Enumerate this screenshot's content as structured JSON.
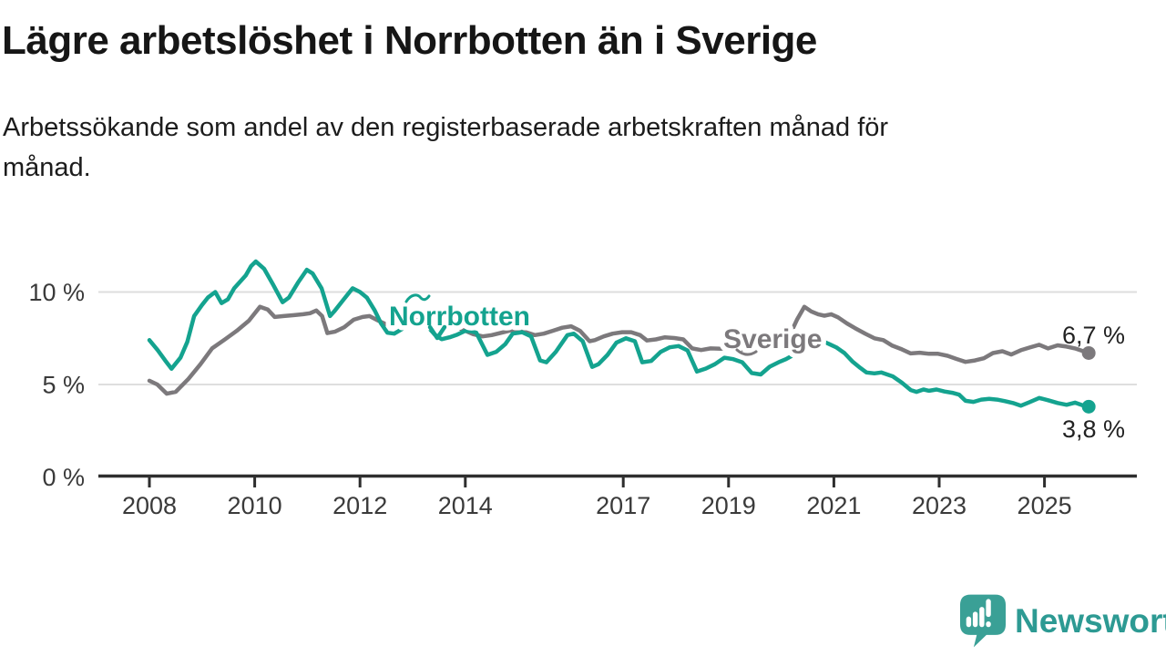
{
  "header": {
    "title": "Lägre arbetslöshet i Norrbotten än i Sverige",
    "subtitle_lines": [
      "Arbetssökande som andel av den registerbaserade arbetskraften månad för",
      "månad."
    ]
  },
  "colors": {
    "norrbotten": "#14a38f",
    "sverige": "#7c797c",
    "axis": "#2e2e2e",
    "grid": "#dedede",
    "tick_text": "#3a3a3a",
    "end_label_text": "#222222",
    "logo_teal": "#3aa096",
    "logo_text_teal": "#2d9a93"
  },
  "chart_data": {
    "type": "line",
    "title": "Lägre arbetslöshet i Norrbotten än i Sverige",
    "xlabel": "",
    "ylabel": "Arbetssökande som andel av den registerbaserade arbetskraften",
    "legend_position": "inline-labels",
    "grid": "horizontal",
    "x_axis": {
      "ticks": [
        2008,
        2010,
        2012,
        2014,
        2017,
        2019,
        2021,
        2023,
        2025
      ],
      "tick_labels": [
        "2008",
        "2010",
        "2012",
        "2014",
        "2017",
        "2019",
        "2021",
        "2023",
        "2025"
      ],
      "xlim": [
        2007.1,
        2026.7
      ]
    },
    "y_axis": {
      "ticks": [
        0,
        5,
        10
      ],
      "tick_labels": [
        "0 %",
        "5 %",
        "10 %"
      ],
      "gridlines": [
        5,
        10
      ],
      "ylim": [
        0,
        12
      ],
      "unit": "%"
    },
    "series": [
      {
        "name": "Sverige",
        "label_text": "Sverige",
        "color": "#7c797c",
        "end_label": "6,7 %",
        "end_value": 6.7,
        "points": [
          [
            2008.0,
            5.2
          ],
          [
            2008.15,
            5.0
          ],
          [
            2008.33,
            4.5
          ],
          [
            2008.5,
            4.6
          ],
          [
            2008.74,
            5.3
          ],
          [
            2008.97,
            6.1
          ],
          [
            2009.19,
            6.95
          ],
          [
            2009.44,
            7.45
          ],
          [
            2009.66,
            7.9
          ],
          [
            2009.89,
            8.45
          ],
          [
            2010.1,
            9.2
          ],
          [
            2010.25,
            9.05
          ],
          [
            2010.38,
            8.65
          ],
          [
            2010.55,
            8.7
          ],
          [
            2010.75,
            8.75
          ],
          [
            2010.92,
            8.8
          ],
          [
            2011.05,
            8.85
          ],
          [
            2011.17,
            9.0
          ],
          [
            2011.28,
            8.7
          ],
          [
            2011.38,
            7.78
          ],
          [
            2011.52,
            7.85
          ],
          [
            2011.7,
            8.1
          ],
          [
            2011.88,
            8.5
          ],
          [
            2012.05,
            8.65
          ],
          [
            2012.18,
            8.7
          ],
          [
            2012.35,
            8.45
          ],
          [
            2012.5,
            8.25
          ],
          [
            2012.65,
            8.2
          ],
          [
            2012.82,
            8.35
          ],
          [
            2013.0,
            8.5
          ],
          [
            2013.2,
            8.5
          ],
          [
            2013.4,
            8.45
          ],
          [
            2013.6,
            8.3
          ],
          [
            2013.8,
            8.15
          ],
          [
            2014.0,
            7.9
          ],
          [
            2014.15,
            7.72
          ],
          [
            2014.33,
            7.6
          ],
          [
            2014.5,
            7.67
          ],
          [
            2014.73,
            7.83
          ],
          [
            2014.97,
            8.0
          ],
          [
            2015.15,
            7.83
          ],
          [
            2015.32,
            7.67
          ],
          [
            2015.49,
            7.75
          ],
          [
            2015.66,
            7.9
          ],
          [
            2015.84,
            8.07
          ],
          [
            2016.01,
            8.15
          ],
          [
            2016.18,
            7.9
          ],
          [
            2016.36,
            7.34
          ],
          [
            2016.46,
            7.4
          ],
          [
            2016.63,
            7.6
          ],
          [
            2016.8,
            7.75
          ],
          [
            2016.98,
            7.83
          ],
          [
            2017.15,
            7.83
          ],
          [
            2017.32,
            7.67
          ],
          [
            2017.45,
            7.38
          ],
          [
            2017.62,
            7.44
          ],
          [
            2017.79,
            7.55
          ],
          [
            2017.97,
            7.51
          ],
          [
            2018.14,
            7.44
          ],
          [
            2018.31,
            6.95
          ],
          [
            2018.48,
            6.86
          ],
          [
            2018.66,
            6.95
          ],
          [
            2018.85,
            6.93
          ],
          [
            2019.05,
            7.0
          ],
          [
            2019.25,
            6.9
          ],
          [
            2019.45,
            6.85
          ],
          [
            2019.65,
            6.95
          ],
          [
            2019.85,
            7.05
          ],
          [
            2020.0,
            7.25
          ],
          [
            2020.15,
            7.6
          ],
          [
            2020.3,
            8.5
          ],
          [
            2020.44,
            9.2
          ],
          [
            2020.57,
            8.95
          ],
          [
            2020.7,
            8.8
          ],
          [
            2020.82,
            8.72
          ],
          [
            2020.95,
            8.8
          ],
          [
            2021.08,
            8.63
          ],
          [
            2021.25,
            8.3
          ],
          [
            2021.4,
            8.05
          ],
          [
            2021.6,
            7.74
          ],
          [
            2021.77,
            7.5
          ],
          [
            2021.94,
            7.4
          ],
          [
            2022.11,
            7.1
          ],
          [
            2022.29,
            6.9
          ],
          [
            2022.46,
            6.68
          ],
          [
            2022.63,
            6.72
          ],
          [
            2022.81,
            6.66
          ],
          [
            2022.98,
            6.66
          ],
          [
            2023.16,
            6.55
          ],
          [
            2023.33,
            6.38
          ],
          [
            2023.5,
            6.22
          ],
          [
            2023.68,
            6.3
          ],
          [
            2023.85,
            6.42
          ],
          [
            2024.02,
            6.7
          ],
          [
            2024.2,
            6.8
          ],
          [
            2024.37,
            6.62
          ],
          [
            2024.55,
            6.85
          ],
          [
            2024.72,
            7.0
          ],
          [
            2024.9,
            7.15
          ],
          [
            2025.07,
            6.95
          ],
          [
            2025.25,
            7.12
          ],
          [
            2025.42,
            7.05
          ],
          [
            2025.58,
            6.95
          ],
          [
            2025.72,
            6.82
          ],
          [
            2025.84,
            6.7
          ]
        ]
      },
      {
        "name": "Norrbotten",
        "label_text": "Norrbotten",
        "color": "#14a38f",
        "end_label": "3,8 %",
        "end_value": 3.8,
        "points": [
          [
            2008.0,
            7.4
          ],
          [
            2008.16,
            6.85
          ],
          [
            2008.3,
            6.3
          ],
          [
            2008.42,
            5.85
          ],
          [
            2008.59,
            6.45
          ],
          [
            2008.72,
            7.3
          ],
          [
            2008.85,
            8.7
          ],
          [
            2009.0,
            9.3
          ],
          [
            2009.11,
            9.7
          ],
          [
            2009.25,
            10.0
          ],
          [
            2009.37,
            9.4
          ],
          [
            2009.49,
            9.6
          ],
          [
            2009.61,
            10.2
          ],
          [
            2009.83,
            10.9
          ],
          [
            2009.93,
            11.4
          ],
          [
            2010.02,
            11.65
          ],
          [
            2010.18,
            11.25
          ],
          [
            2010.35,
            10.4
          ],
          [
            2010.53,
            9.45
          ],
          [
            2010.65,
            9.7
          ],
          [
            2010.82,
            10.5
          ],
          [
            2010.99,
            11.2
          ],
          [
            2011.1,
            11.0
          ],
          [
            2011.27,
            10.2
          ],
          [
            2011.43,
            8.7
          ],
          [
            2011.51,
            8.95
          ],
          [
            2011.69,
            9.6
          ],
          [
            2011.86,
            10.2
          ],
          [
            2012.0,
            10.0
          ],
          [
            2012.13,
            9.7
          ],
          [
            2012.28,
            9.0
          ],
          [
            2012.4,
            8.3
          ],
          [
            2012.52,
            7.8
          ],
          [
            2012.65,
            7.75
          ],
          [
            2012.8,
            8.0
          ],
          [
            2012.95,
            8.3
          ],
          [
            2013.08,
            8.45
          ],
          [
            2013.25,
            8.25
          ],
          [
            2013.42,
            7.7
          ],
          [
            2013.55,
            7.45
          ],
          [
            2013.7,
            7.55
          ],
          [
            2013.85,
            7.7
          ],
          [
            2014.0,
            7.9
          ],
          [
            2014.1,
            7.88
          ],
          [
            2014.21,
            7.8
          ],
          [
            2014.42,
            6.6
          ],
          [
            2014.59,
            6.77
          ],
          [
            2014.76,
            7.18
          ],
          [
            2014.9,
            7.75
          ],
          [
            2015.08,
            7.83
          ],
          [
            2015.25,
            7.6
          ],
          [
            2015.42,
            6.3
          ],
          [
            2015.54,
            6.2
          ],
          [
            2015.72,
            6.77
          ],
          [
            2015.94,
            7.67
          ],
          [
            2016.06,
            7.75
          ],
          [
            2016.23,
            7.34
          ],
          [
            2016.41,
            5.95
          ],
          [
            2016.53,
            6.1
          ],
          [
            2016.7,
            6.6
          ],
          [
            2016.87,
            7.26
          ],
          [
            2017.05,
            7.5
          ],
          [
            2017.22,
            7.34
          ],
          [
            2017.36,
            6.2
          ],
          [
            2017.53,
            6.27
          ],
          [
            2017.71,
            6.76
          ],
          [
            2017.88,
            7.01
          ],
          [
            2018.05,
            7.08
          ],
          [
            2018.22,
            6.84
          ],
          [
            2018.4,
            5.7
          ],
          [
            2018.57,
            5.86
          ],
          [
            2018.74,
            6.1
          ],
          [
            2018.92,
            6.45
          ],
          [
            2019.09,
            6.37
          ],
          [
            2019.26,
            6.2
          ],
          [
            2019.44,
            5.62
          ],
          [
            2019.61,
            5.54
          ],
          [
            2019.78,
            5.96
          ],
          [
            2019.95,
            6.2
          ],
          [
            2020.09,
            6.37
          ],
          [
            2020.3,
            6.7
          ],
          [
            2020.5,
            7.05
          ],
          [
            2020.65,
            7.25
          ],
          [
            2020.78,
            7.35
          ],
          [
            2020.9,
            7.2
          ],
          [
            2021.05,
            7.0
          ],
          [
            2021.2,
            6.7
          ],
          [
            2021.35,
            6.25
          ],
          [
            2021.5,
            5.9
          ],
          [
            2021.62,
            5.65
          ],
          [
            2021.77,
            5.6
          ],
          [
            2021.9,
            5.65
          ],
          [
            2022.0,
            5.55
          ],
          [
            2022.12,
            5.44
          ],
          [
            2022.29,
            5.1
          ],
          [
            2022.46,
            4.7
          ],
          [
            2022.57,
            4.6
          ],
          [
            2022.7,
            4.73
          ],
          [
            2022.81,
            4.66
          ],
          [
            2022.95,
            4.73
          ],
          [
            2023.1,
            4.62
          ],
          [
            2023.25,
            4.55
          ],
          [
            2023.38,
            4.45
          ],
          [
            2023.5,
            4.12
          ],
          [
            2023.65,
            4.06
          ],
          [
            2023.8,
            4.18
          ],
          [
            2023.95,
            4.22
          ],
          [
            2024.1,
            4.18
          ],
          [
            2024.25,
            4.1
          ],
          [
            2024.4,
            4.0
          ],
          [
            2024.55,
            3.85
          ],
          [
            2024.72,
            4.05
          ],
          [
            2024.9,
            4.27
          ],
          [
            2025.07,
            4.15
          ],
          [
            2025.25,
            4.0
          ],
          [
            2025.42,
            3.9
          ],
          [
            2025.58,
            4.02
          ],
          [
            2025.72,
            3.88
          ],
          [
            2025.84,
            3.8
          ]
        ]
      }
    ]
  },
  "logo": {
    "text": "Newsworthy",
    "icon": "newsworthy-speech-bubble-chart-icon"
  }
}
